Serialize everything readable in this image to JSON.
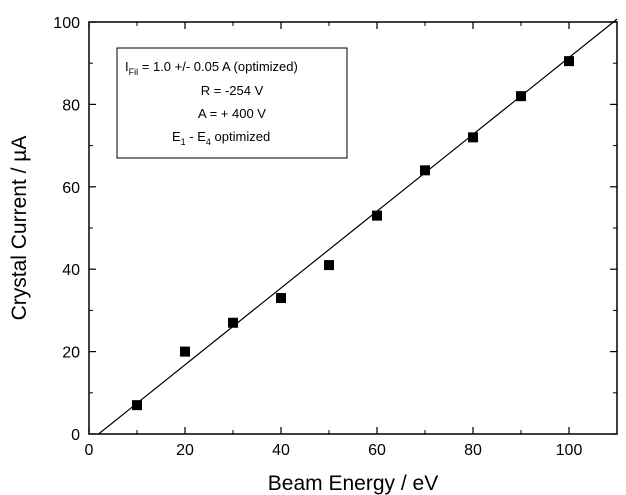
{
  "chart_data": {
    "type": "scatter",
    "xlabel": "Beam Energy / eV",
    "ylabel": "Crystal Current / µA",
    "xlim": [
      0,
      110
    ],
    "ylim": [
      0,
      100
    ],
    "x_ticks": [
      0,
      20,
      40,
      60,
      80,
      100
    ],
    "y_ticks": [
      0,
      20,
      40,
      60,
      80,
      100
    ],
    "x_tick_labels": [
      "0",
      "20",
      "40",
      "60",
      "80",
      "100"
    ],
    "y_tick_labels": [
      "0",
      "20",
      "40",
      "60",
      "80",
      "100"
    ],
    "grid": false,
    "series": [
      {
        "marker": "square",
        "x": [
          10,
          20,
          30,
          40,
          50,
          60,
          70,
          80,
          90,
          100
        ],
        "y": [
          7,
          20,
          27,
          33,
          41,
          53,
          64,
          72,
          82,
          90.5
        ]
      }
    ],
    "fit_line": {
      "x": [
        2,
        110
      ],
      "y": [
        0,
        100.7
      ]
    },
    "annotation": {
      "line1_main": "I",
      "line1_sub": "Fil",
      "line1_rest": " = 1.0  +/- 0.05 A (optimized)",
      "line2": "R = -254 V",
      "line3": "A = + 400 V",
      "line4_a": "E",
      "line4_sub1": "1",
      "line4_mid": " - E",
      "line4_sub2": "4",
      "line4_rest": " optimized"
    }
  }
}
